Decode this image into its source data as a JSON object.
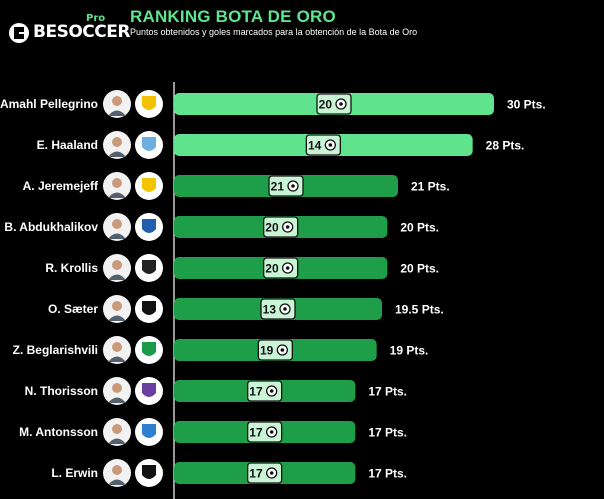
{
  "brand": {
    "name": "BESOCCER",
    "pro": "Pro"
  },
  "colors": {
    "background": "#000000",
    "bar_light": "#5fe38d",
    "bar_dark": "#1f9e4a",
    "title": "#5fe38d",
    "goal_badge": "#c9f5d6"
  },
  "chart_data": {
    "type": "bar",
    "orientation": "horizontal",
    "title": "RANKING BOTA DE ORO",
    "subtitle": "Puntos obtenidos y goles marcados para la obtención de la Bota de Oro",
    "xlim": [
      0,
      30
    ],
    "grid": false,
    "players": [
      {
        "name": "Amahl Pellegrino",
        "points": 30,
        "points_label": "30 Pts.",
        "goals": 20,
        "avatar_icon": "player-photo-icon",
        "club_icon": "club-crest-icon",
        "club_color": "#f2c200"
      },
      {
        "name": "E. Haaland",
        "points": 28,
        "points_label": "28 Pts.",
        "goals": 14,
        "avatar_icon": "player-photo-icon",
        "club_icon": "club-crest-icon",
        "club_color": "#6caee0"
      },
      {
        "name": "A. Jeremejeff",
        "points": 21,
        "points_label": "21 Pts.",
        "goals": 21,
        "avatar_icon": "player-photo-icon",
        "club_icon": "club-crest-icon",
        "club_color": "#f4c400"
      },
      {
        "name": "B. Abdukhalikov",
        "points": 20,
        "points_label": "20 Pts.",
        "goals": 20,
        "avatar_icon": "player-photo-icon",
        "club_icon": "club-crest-icon",
        "club_color": "#1f5fae"
      },
      {
        "name": "R. Krollis",
        "points": 20,
        "points_label": "20 Pts.",
        "goals": 20,
        "avatar_icon": "player-photo-icon",
        "club_icon": "club-crest-icon",
        "club_color": "#222222"
      },
      {
        "name": "O. Sæter",
        "points": 19.5,
        "points_label": "19.5 Pts.",
        "goals": 13,
        "avatar_icon": "player-photo-icon",
        "club_icon": "club-crest-icon",
        "club_color": "#111111"
      },
      {
        "name": "Z. Beglarishvili",
        "points": 19,
        "points_label": "19 Pts.",
        "goals": 19,
        "avatar_icon": "player-photo-icon",
        "club_icon": "club-crest-icon",
        "club_color": "#1a9a4a"
      },
      {
        "name": "N. Thorisson",
        "points": 17,
        "points_label": "17 Pts.",
        "goals": 17,
        "avatar_icon": "player-photo-icon",
        "club_icon": "club-crest-icon",
        "club_color": "#6a3fa0"
      },
      {
        "name": "M. Antonsson",
        "points": 17,
        "points_label": "17 Pts.",
        "goals": 17,
        "avatar_icon": "player-photo-icon",
        "club_icon": "club-crest-icon",
        "club_color": "#2f7fd0"
      },
      {
        "name": "L. Erwin",
        "points": 17,
        "points_label": "17 Pts.",
        "goals": 17,
        "avatar_icon": "player-photo-icon",
        "club_icon": "club-crest-icon",
        "club_color": "#111111"
      }
    ]
  }
}
